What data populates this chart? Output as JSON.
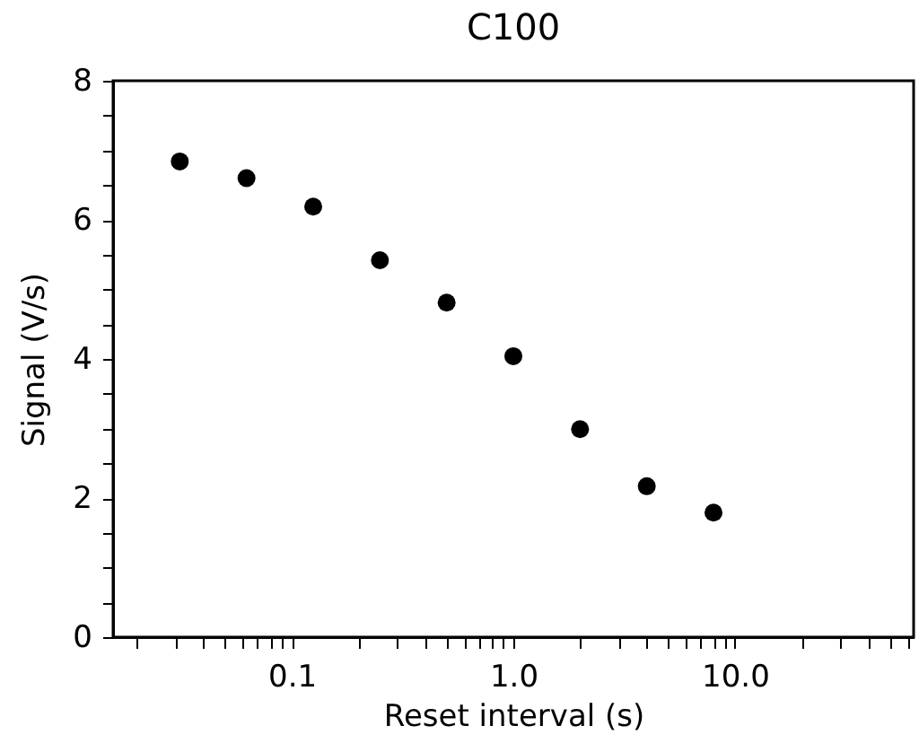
{
  "chart_data": {
    "type": "scatter",
    "title": "C100",
    "xlabel": "Reset interval (s)",
    "ylabel": "Signal (V/s)",
    "x": [
      0.03125,
      0.0625,
      0.125,
      0.25,
      0.5,
      1,
      2,
      4,
      8
    ],
    "series": [
      {
        "color": "#000000",
        "values": [
          6.84,
          6.6,
          6.19,
          5.42,
          4.81,
          4.04,
          2.99,
          2.17,
          1.79
        ]
      }
    ],
    "log": "x",
    "marker": "circle",
    "grid": false,
    "legend": false,
    "xlim": [
      0.015625,
      64
    ],
    "ylim": [
      0,
      8
    ],
    "xticks": [
      {
        "value": 0.02,
        "label": null
      },
      {
        "value": 0.03,
        "label": null
      },
      {
        "value": 0.04,
        "label": null
      },
      {
        "value": 0.05,
        "label": null
      },
      {
        "value": 0.06,
        "label": null
      },
      {
        "value": 0.07,
        "label": null
      },
      {
        "value": 0.08,
        "label": null
      },
      {
        "value": 0.09,
        "label": null
      },
      {
        "value": 0.1,
        "label": "0.1"
      },
      {
        "value": 0.2,
        "label": null
      },
      {
        "value": 0.3,
        "label": null
      },
      {
        "value": 0.4,
        "label": null
      },
      {
        "value": 0.5,
        "label": null
      },
      {
        "value": 0.6,
        "label": null
      },
      {
        "value": 0.7,
        "label": null
      },
      {
        "value": 0.8,
        "label": null
      },
      {
        "value": 0.9,
        "label": null
      },
      {
        "value": 1,
        "label": "1.0"
      },
      {
        "value": 2,
        "label": null
      },
      {
        "value": 3,
        "label": null
      },
      {
        "value": 4,
        "label": null
      },
      {
        "value": 5,
        "label": null
      },
      {
        "value": 6,
        "label": null
      },
      {
        "value": 7,
        "label": null
      },
      {
        "value": 8,
        "label": null
      },
      {
        "value": 9,
        "label": null
      },
      {
        "value": 10,
        "label": "10.0"
      },
      {
        "value": 20,
        "label": null
      },
      {
        "value": 30,
        "label": null
      },
      {
        "value": 40,
        "label": null
      },
      {
        "value": 50,
        "label": null
      },
      {
        "value": 60,
        "label": null
      }
    ],
    "yticks": [
      0,
      {
        "value": 0.5,
        "label": null
      },
      {
        "value": 1,
        "label": null
      },
      {
        "value": 1.5,
        "label": null
      },
      2,
      {
        "value": 2.5,
        "label": null
      },
      {
        "value": 3,
        "label": null
      },
      {
        "value": 3.5,
        "label": null
      },
      4,
      {
        "value": 4.5,
        "label": null
      },
      {
        "value": 5,
        "label": null
      },
      {
        "value": 5.5,
        "label": null
      },
      6,
      {
        "value": 6.5,
        "label": null
      },
      {
        "value": 7,
        "label": null
      },
      {
        "value": 7.5,
        "label": null
      },
      8
    ]
  }
}
